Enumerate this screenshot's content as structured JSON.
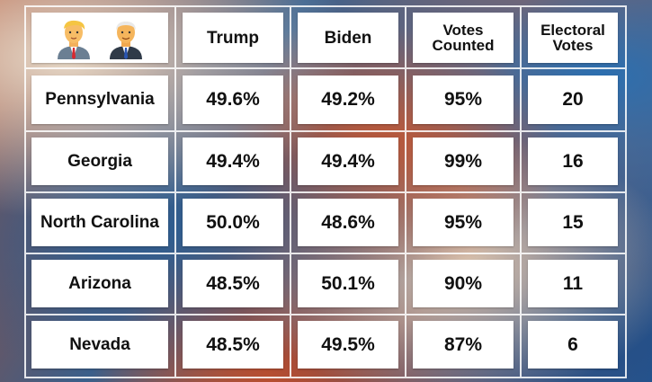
{
  "header": {
    "icons": [
      "trump-avatar-icon",
      "biden-avatar-icon"
    ],
    "trump_label": "Trump",
    "biden_label": "Biden",
    "counted_label_line1": "Votes",
    "counted_label_line2": "Counted",
    "electoral_label_line1": "Electoral",
    "electoral_label_line2": "Votes"
  },
  "rows": [
    {
      "state": "Pennsylvania",
      "trump": "49.6%",
      "biden": "49.2%",
      "counted": "95%",
      "electoral": "20"
    },
    {
      "state": "Georgia",
      "trump": "49.4%",
      "biden": "49.4%",
      "counted": "99%",
      "electoral": "16"
    },
    {
      "state": "North Carolina",
      "trump": "50.0%",
      "biden": "48.6%",
      "counted": "95%",
      "electoral": "15"
    },
    {
      "state": "Arizona",
      "trump": "48.5%",
      "biden": "50.1%",
      "counted": "90%",
      "electoral": "11"
    },
    {
      "state": "Nevada",
      "trump": "48.5%",
      "biden": "49.5%",
      "counted": "87%",
      "electoral": "6"
    }
  ],
  "colors": {
    "cell_background": "#ffffff",
    "text": "#111111",
    "grid_lines": "#ffffff"
  }
}
